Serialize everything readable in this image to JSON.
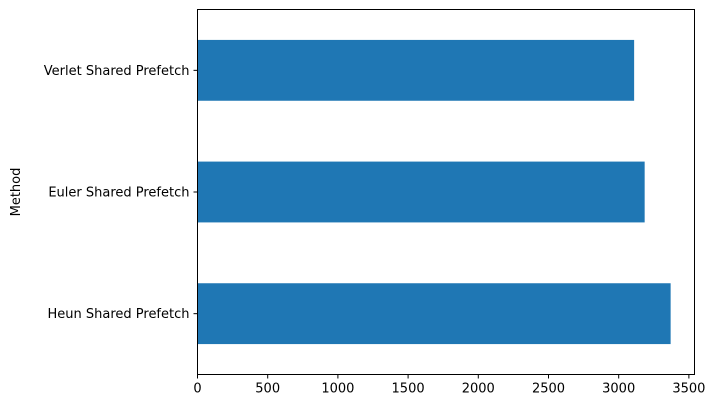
{
  "chart_data": {
    "type": "bar",
    "orientation": "horizontal",
    "categories": [
      "Heun Shared Prefetch",
      "Euler Shared Prefetch",
      "Verlet Shared Prefetch"
    ],
    "values": [
      3370,
      3185,
      3110
    ],
    "xlim": [
      0,
      3540
    ],
    "xticks": [
      "0",
      "500",
      "1000",
      "1500",
      "2000",
      "2500",
      "3000",
      "3500"
    ],
    "xlabel": "",
    "ylabel": "Method",
    "title": "",
    "grid": false,
    "legend": "none",
    "bar_color": "#1f77b4"
  }
}
